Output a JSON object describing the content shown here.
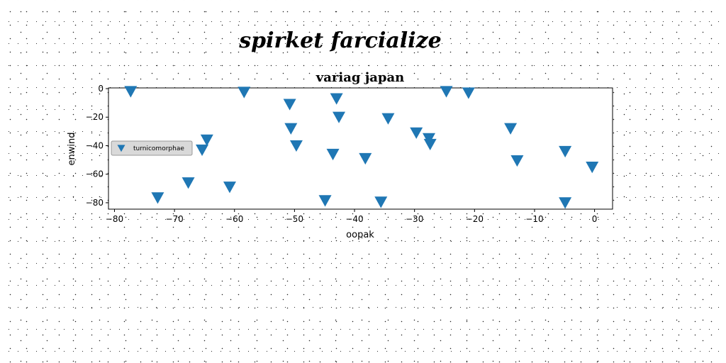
{
  "chart_data": {
    "type": "scatter",
    "suptitle": "spirket farcialize",
    "title": "variag japan",
    "xlabel": "oopak",
    "ylabel": "enwind",
    "xlim": [
      -81,
      3
    ],
    "ylim": [
      -84.5,
      0.5
    ],
    "xticks": [
      -80,
      -70,
      -60,
      -50,
      -40,
      -30,
      -20,
      -10,
      0
    ],
    "yticks": [
      0,
      -20,
      -40,
      -60,
      -80
    ],
    "grid": false,
    "legend_position": "center-left",
    "marker": "triangle-down",
    "color": "#1f77b4",
    "series": [
      {
        "name": "turnicomorphae",
        "points": [
          [
            -77.3,
            -2
          ],
          [
            -58.4,
            -2.5
          ],
          [
            -72.8,
            -76.5
          ],
          [
            -67.7,
            -66
          ],
          [
            -65.4,
            -43
          ],
          [
            -64.6,
            -36
          ],
          [
            -60.8,
            -69
          ],
          [
            -50.8,
            -11
          ],
          [
            -50.6,
            -28
          ],
          [
            -49.7,
            -40
          ],
          [
            -44.9,
            -78.5
          ],
          [
            -43.6,
            -46
          ],
          [
            -43.0,
            -7
          ],
          [
            -42.6,
            -20
          ],
          [
            -38.2,
            -49
          ],
          [
            -35.6,
            -79.5
          ],
          [
            -34.4,
            -21
          ],
          [
            -29.7,
            -31
          ],
          [
            -27.6,
            -35
          ],
          [
            -27.4,
            -39
          ],
          [
            -24.7,
            -2
          ],
          [
            -21.0,
            -3
          ],
          [
            -14.0,
            -28
          ],
          [
            -12.9,
            -50.5
          ],
          [
            -4.9,
            -44
          ],
          [
            -4.9,
            -80
          ],
          [
            -0.4,
            -55
          ]
        ]
      }
    ]
  }
}
